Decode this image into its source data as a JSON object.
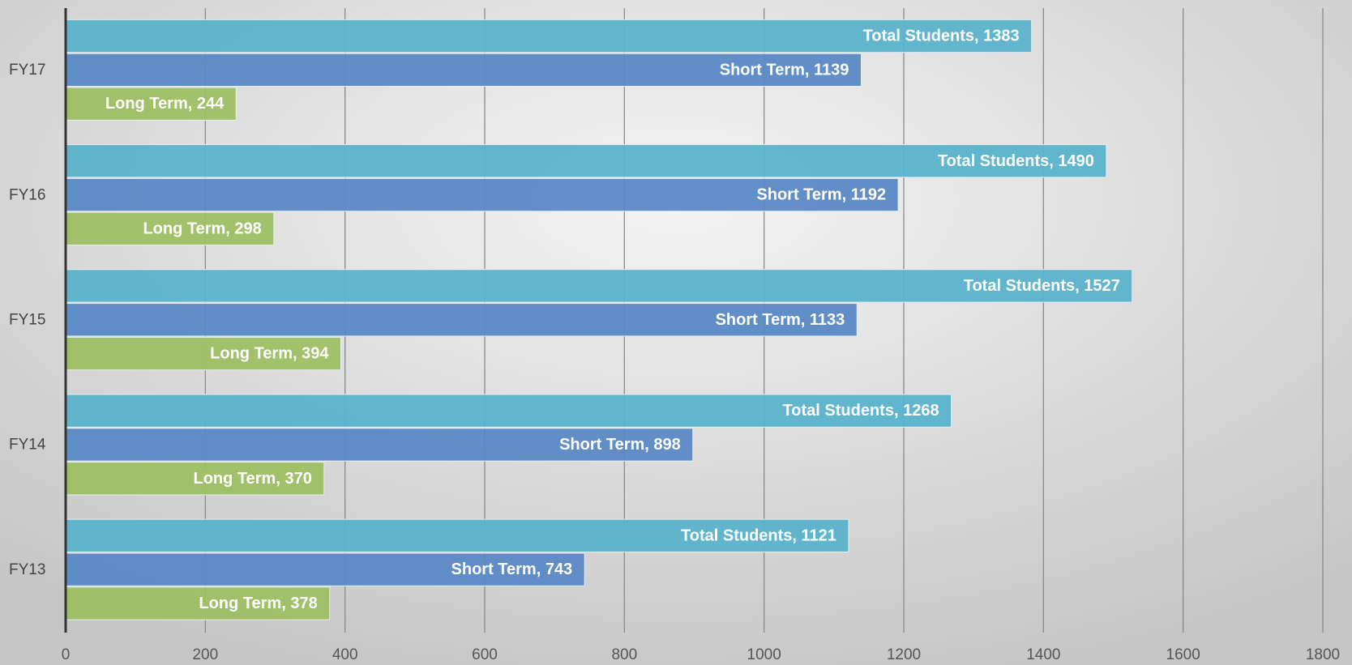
{
  "chart_data": {
    "type": "bar",
    "orientation": "horizontal",
    "categories": [
      "FY17",
      "FY16",
      "FY15",
      "FY14",
      "FY13"
    ],
    "series": [
      {
        "name": "Total Students",
        "color": "#5ab3cb",
        "values": [
          1383,
          1490,
          1527,
          1268,
          1121
        ],
        "value_labels": [
          "Total Students, 1383",
          "Total Students, 1490",
          "Total Students, 1527",
          "Total Students, 1268",
          "Total Students, 1121"
        ]
      },
      {
        "name": "Short Term",
        "color": "#5b89c5",
        "values": [
          1139,
          1192,
          1133,
          898,
          743
        ],
        "value_labels": [
          "Short Term, 1139",
          "Short Term, 1192",
          "Short Term, 1133",
          "Short Term, 898",
          "Short Term, 743"
        ]
      },
      {
        "name": "Long Term",
        "color": "#9dc063",
        "values": [
          244,
          298,
          394,
          370,
          378
        ],
        "value_labels": [
          "Long Term, 244",
          "Long Term, 298",
          "Long Term, 394",
          "Long Term, 370",
          "Long Term, 378"
        ]
      }
    ],
    "xlim": [
      0,
      1800
    ],
    "xticks": [
      0,
      200,
      400,
      600,
      800,
      1000,
      1200,
      1400,
      1600,
      1800
    ],
    "grid": true
  }
}
